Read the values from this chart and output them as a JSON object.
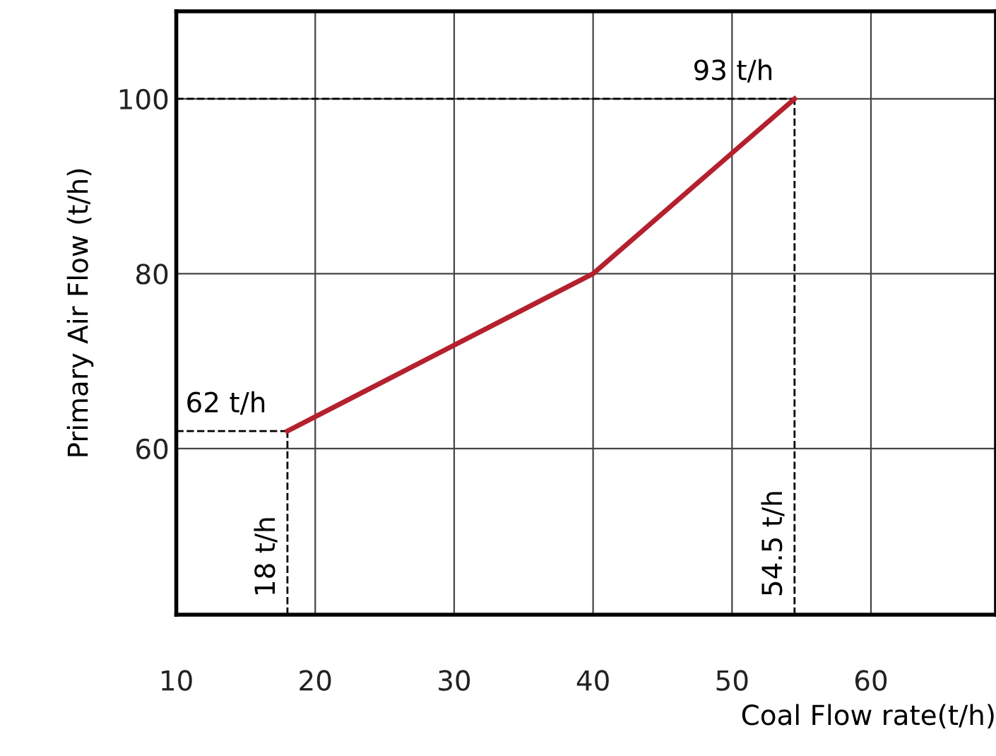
{
  "chart_data": {
    "type": "line",
    "xlabel": "Coal Flow rate(t/h)",
    "ylabel": "Primary Air Flow (t/h)",
    "series": [
      {
        "color": "#b5202e",
        "x": [
          18,
          40,
          54.5
        ],
        "values": [
          62,
          80,
          100
        ]
      }
    ],
    "xlim": [
      10,
      69
    ],
    "xticks": [
      10,
      20,
      30,
      40,
      50,
      60
    ],
    "ylim": [
      41,
      110
    ],
    "yticks": [
      60,
      80,
      100
    ],
    "grid": true,
    "marker": "none",
    "line_style": "solid",
    "ref_lines": [
      {
        "axis": "y",
        "value": 62,
        "label": "62 t/h",
        "line_style": "dashed",
        "color": "#000000"
      },
      {
        "axis": "x",
        "value": 18,
        "label": "18 t/h",
        "line_style": "dashed",
        "color": "#000000"
      },
      {
        "axis": "y",
        "value": 100,
        "label": "93 t/h",
        "line_style": "dashed",
        "color": "#000000"
      },
      {
        "axis": "x",
        "value": 54.5,
        "label": "54.5 t/h",
        "line_style": "dashed",
        "color": "#000000"
      }
    ]
  }
}
